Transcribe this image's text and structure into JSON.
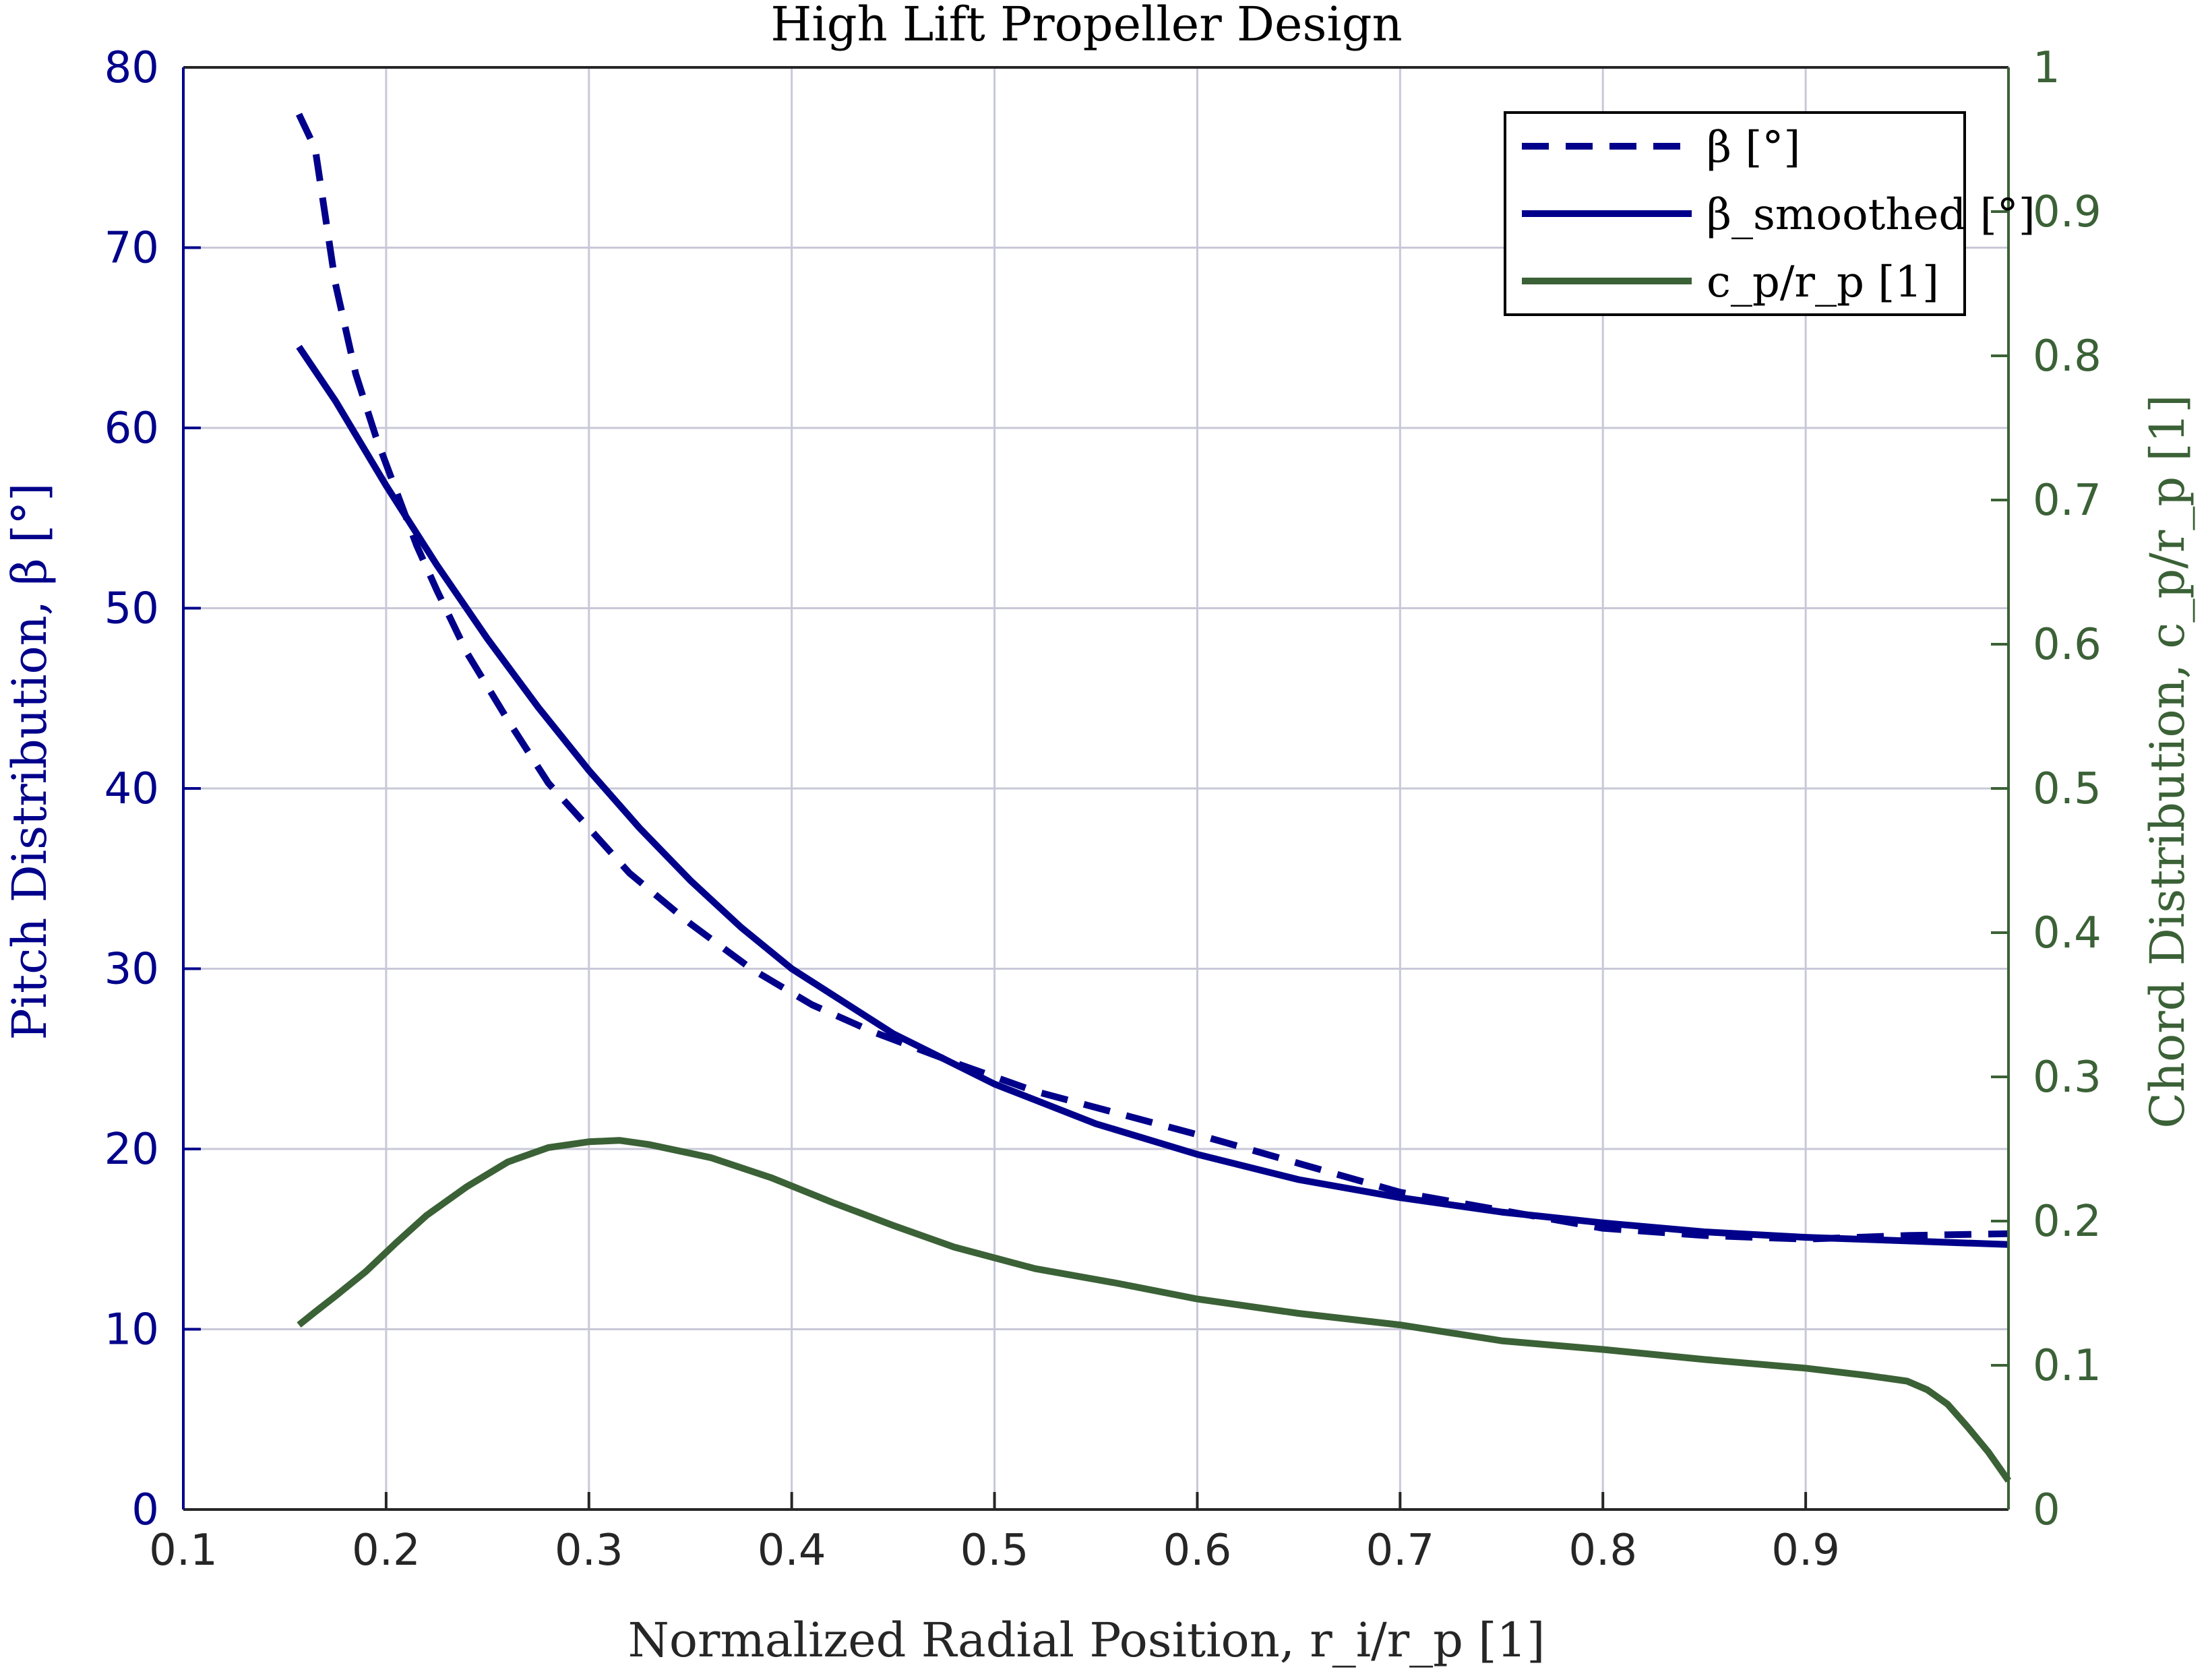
{
  "chart_data": {
    "type": "line",
    "title": "High Lift Propeller Design",
    "xlabel": "Normalized Radial Position, r_i/r_p [1]",
    "ylabel_left": "Pitch Distribution, β [°]",
    "ylabel_right": "Chord Distribution, c_p/r_p [1]",
    "xlim": [
      0.1,
      1.0
    ],
    "ylim_left": [
      0,
      80
    ],
    "ylim_right": [
      0,
      1
    ],
    "x_ticks": [
      0.1,
      0.2,
      0.3,
      0.4,
      0.5,
      0.6,
      0.7,
      0.8,
      0.9
    ],
    "x_tick_labels": [
      "0.1",
      "0.2",
      "0.3",
      "0.4",
      "0.5",
      "0.6",
      "0.7",
      "0.8",
      "0.9"
    ],
    "y_left_ticks": [
      0,
      10,
      20,
      30,
      40,
      50,
      60,
      70,
      80
    ],
    "y_left_tick_labels": [
      "0",
      "10",
      "20",
      "30",
      "40",
      "50",
      "60",
      "70",
      "80"
    ],
    "y_right_ticks": [
      0,
      0.1,
      0.2,
      0.3,
      0.4,
      0.5,
      0.6,
      0.7,
      0.8,
      0.9,
      1
    ],
    "y_right_tick_labels": [
      "0",
      "0.1",
      "0.2",
      "0.3",
      "0.4",
      "0.5",
      "0.6",
      "0.7",
      "0.8",
      "0.9",
      "1"
    ],
    "grid": true,
    "legend_position": "top-right",
    "colors": {
      "pitch": "#00008b",
      "chord": "#3b6136",
      "grid": "#c8c8d8",
      "axis": "#262626"
    },
    "series": [
      {
        "name": "β [°]",
        "axis": "left",
        "style": "dashed",
        "x": [
          0.157,
          0.165,
          0.175,
          0.185,
          0.195,
          0.205,
          0.215,
          0.225,
          0.24,
          0.26,
          0.28,
          0.3,
          0.32,
          0.35,
          0.38,
          0.41,
          0.44,
          0.48,
          0.52,
          0.56,
          0.6,
          0.65,
          0.7,
          0.75,
          0.8,
          0.85,
          0.9,
          0.95,
          1.0
        ],
        "values": [
          77.4,
          75.5,
          68.0,
          63.0,
          59.5,
          56.5,
          53.5,
          51.0,
          47.5,
          43.8,
          40.3,
          37.8,
          35.3,
          32.5,
          30.0,
          28.0,
          26.5,
          24.8,
          23.2,
          22.0,
          20.8,
          19.2,
          17.6,
          16.6,
          15.6,
          15.2,
          15.0,
          15.2,
          15.3
        ]
      },
      {
        "name": "β_smoothed [°]",
        "axis": "left",
        "style": "solid",
        "x": [
          0.157,
          0.175,
          0.2,
          0.225,
          0.25,
          0.275,
          0.3,
          0.325,
          0.35,
          0.375,
          0.4,
          0.45,
          0.5,
          0.55,
          0.6,
          0.65,
          0.7,
          0.75,
          0.8,
          0.85,
          0.9,
          0.95,
          1.0
        ],
        "values": [
          64.5,
          61.5,
          56.8,
          52.4,
          48.3,
          44.5,
          41.0,
          37.8,
          34.9,
          32.3,
          30.0,
          26.4,
          23.6,
          21.4,
          19.7,
          18.3,
          17.3,
          16.5,
          15.9,
          15.4,
          15.1,
          14.9,
          14.7
        ]
      },
      {
        "name": "c_p/r_p [1]",
        "axis": "right",
        "style": "solid",
        "x": [
          0.157,
          0.165,
          0.175,
          0.19,
          0.205,
          0.22,
          0.24,
          0.26,
          0.28,
          0.3,
          0.315,
          0.33,
          0.36,
          0.39,
          0.42,
          0.45,
          0.48,
          0.52,
          0.56,
          0.6,
          0.65,
          0.7,
          0.75,
          0.8,
          0.85,
          0.9,
          0.93,
          0.95,
          0.96,
          0.97,
          0.98,
          0.99,
          1.0
        ],
        "values": [
          0.128,
          0.137,
          0.148,
          0.165,
          0.185,
          0.204,
          0.224,
          0.241,
          0.251,
          0.255,
          0.256,
          0.253,
          0.244,
          0.23,
          0.213,
          0.197,
          0.182,
          0.167,
          0.157,
          0.146,
          0.136,
          0.128,
          0.117,
          0.111,
          0.104,
          0.098,
          0.093,
          0.089,
          0.083,
          0.073,
          0.057,
          0.04,
          0.02
        ]
      }
    ]
  }
}
